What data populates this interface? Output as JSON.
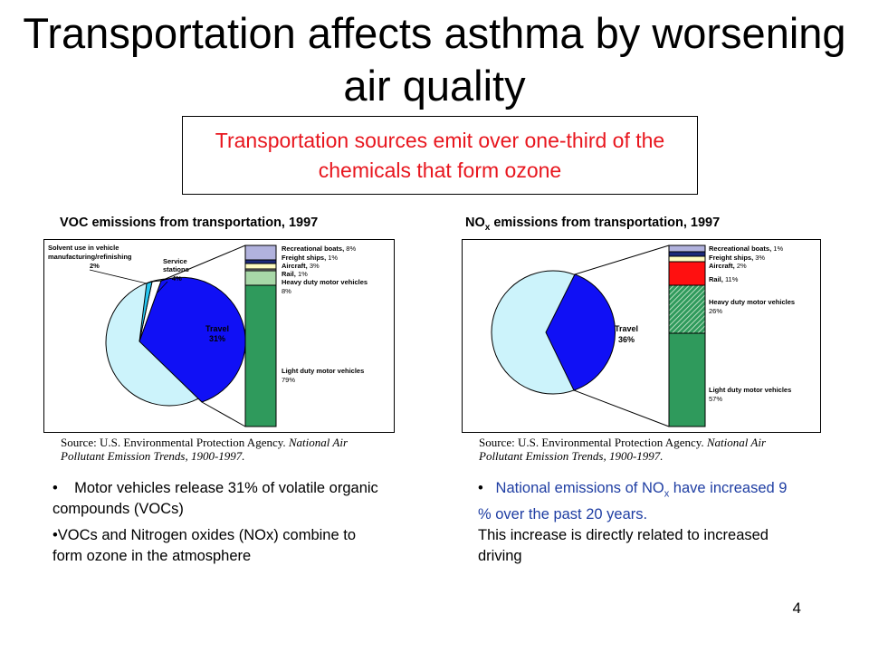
{
  "slide": {
    "title": "Transportation affects asthma by worsening air quality",
    "callout": "Transportation sources emit over one-third of the chemicals that form ozone",
    "page_number": "4"
  },
  "voc": {
    "chart_title": "VOC emissions from transportation, 1997",
    "pie_labels": {
      "solvent": "Solvent use in vehicle manufacturing/refinishing",
      "solvent_pct": "2%",
      "service": "Service stations",
      "service_pct": "4%",
      "travel": "Travel",
      "travel_pct": "31%"
    },
    "bar_labels": [
      {
        "name": "Recreational boats,",
        "pct": "8%"
      },
      {
        "name": "Freight ships,",
        "pct": "1%"
      },
      {
        "name": "Aircraft,",
        "pct": "3%"
      },
      {
        "name": "Rail,",
        "pct": "1%"
      },
      {
        "name": "Heavy duty motor vehicles",
        "pct": "8%"
      },
      {
        "name": "Light duty motor vehicles",
        "pct": "79%"
      }
    ],
    "source_1": "Source: U.S. Environmental Protection Agency.",
    "source_2": "National Air",
    "source_3": "Pollutant Emission Trends, 1900-1997."
  },
  "nox": {
    "chart_title_pre": "NO",
    "chart_title_sub": "x",
    "chart_title_post": " emissions from transportation, 1997",
    "pie_labels": {
      "travel": "Travel",
      "travel_pct": "36%"
    },
    "bar_labels": [
      {
        "name": "Recreational boats,",
        "pct": "1%"
      },
      {
        "name": "Freight ships,",
        "pct": "3%"
      },
      {
        "name": "Aircraft,",
        "pct": "2%"
      },
      {
        "name": "Rail,",
        "pct": "11%"
      },
      {
        "name": "Heavy duty motor vehicles",
        "pct": "26%"
      },
      {
        "name": "Light duty motor vehicles",
        "pct": "57%"
      }
    ],
    "source_1": "Source: U.S. Environmental Protection Agency.",
    "source_2": "National Air",
    "source_3": "Pollutant Emission Trends, 1900-1997."
  },
  "left_bullets": [
    "Motor vehicles release 31% of volatile organic compounds (VOCs)",
    "VOCs and Nitrogen oxides (NOx) combine to form ozone in the atmosphere"
  ],
  "right_bullet": {
    "blue_pre": "National emissions of NO",
    "blue_sub": "x",
    "blue_post": " have increased 9 % over the past 20 years.",
    "black": "This increase is directly related to increased driving"
  },
  "chart_data": [
    {
      "type": "pie",
      "title": "VOC emissions from transportation, 1997",
      "slices": [
        {
          "label": "Travel",
          "value": 31
        },
        {
          "label": "Service stations",
          "value": 4
        },
        {
          "label": "Solvent use in vehicle manufacturing/refinishing",
          "value": 2
        }
      ],
      "breakdown_of": "Travel",
      "breakdown": [
        {
          "label": "Light duty motor vehicles",
          "value": 79
        },
        {
          "label": "Heavy duty motor vehicles",
          "value": 8
        },
        {
          "label": "Rail",
          "value": 1
        },
        {
          "label": "Aircraft",
          "value": 3
        },
        {
          "label": "Freight ships",
          "value": 1
        },
        {
          "label": "Recreational boats",
          "value": 8
        }
      ]
    },
    {
      "type": "pie",
      "title": "NOx emissions from transportation, 1997",
      "slices": [
        {
          "label": "Travel",
          "value": 36
        }
      ],
      "breakdown_of": "Travel",
      "breakdown": [
        {
          "label": "Light duty motor vehicles",
          "value": 57
        },
        {
          "label": "Heavy duty motor vehicles",
          "value": 26
        },
        {
          "label": "Rail",
          "value": 11
        },
        {
          "label": "Aircraft",
          "value": 2
        },
        {
          "label": "Freight ships",
          "value": 3
        },
        {
          "label": "Recreational boats",
          "value": 1
        }
      ]
    }
  ]
}
